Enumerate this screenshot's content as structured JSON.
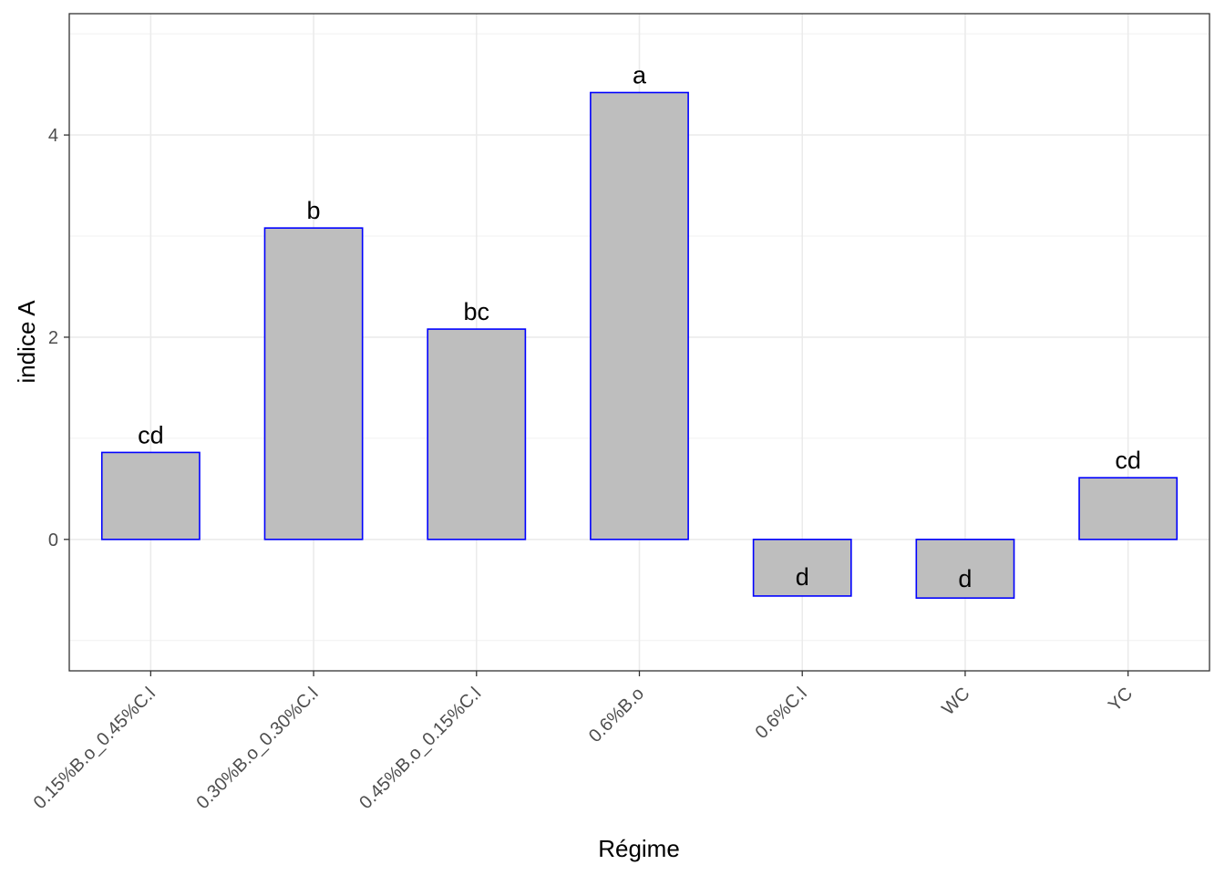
{
  "chart_data": {
    "type": "bar",
    "title": "",
    "xlabel": "Régime",
    "ylabel": "indice A",
    "categories": [
      "0.15%B.o_0.45%C.l",
      "0.30%B.o_0.30%C.l",
      "0.45%B.o_0.15%C.l",
      "0.6%B.o",
      "0.6%C.l",
      "WC",
      "YC"
    ],
    "values": [
      0.86,
      3.08,
      2.08,
      4.42,
      -0.56,
      -0.58,
      0.61
    ],
    "group_letters": [
      "cd",
      "b",
      "bc",
      "a",
      "d",
      "d",
      "cd"
    ],
    "ylim": [
      -1.3,
      5.2
    ],
    "yticks": [
      0,
      2,
      4
    ],
    "grid": true,
    "bar_fill": "#bebebe",
    "bar_outline": "#0000ff",
    "legend": "none"
  }
}
